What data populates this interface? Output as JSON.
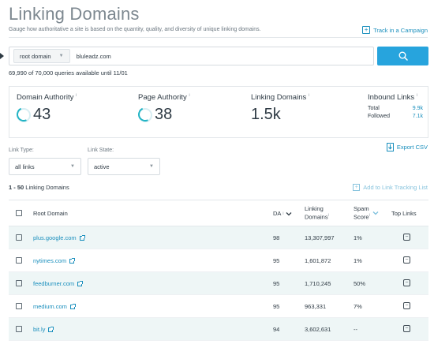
{
  "header": {
    "title": "Linking Domains",
    "subtitle": "Gauge how authoritative a site is based on the quantity, quality, and diversity of unique linking domains.",
    "track_label": "Track in a Campaign"
  },
  "search": {
    "scope_value": "root domain",
    "query": "bluleadz.com",
    "button_icon": "search-icon"
  },
  "quota_text": "69,990 of 70,000 queries available until 11/01",
  "metrics": {
    "da_label": "Domain Authority",
    "da_value": "43",
    "pa_label": "Page Authority",
    "pa_value": "38",
    "ld_label": "Linking Domains",
    "ld_value": "1.5k",
    "inbound_label": "Inbound Links",
    "total_label": "Total",
    "total_value": "9.9k",
    "followed_label": "Followed",
    "followed_value": "7.1k",
    "info_mark": "i"
  },
  "filters": {
    "link_type_label": "Link Type:",
    "link_type_value": "all links",
    "link_state_label": "Link State:",
    "link_state_value": "active"
  },
  "export_label": "Export CSV",
  "count_prefix": "1 - 50",
  "count_suffix": "Linking Domains",
  "add_tracking_label": "Add to Link Tracking List",
  "table": {
    "headers": {
      "root_domain": "Root Domain",
      "da": "DA",
      "linking_domains_1": "Linking",
      "linking_domains_2": "Domains",
      "spam_1": "Spam",
      "spam_2": "Score",
      "top_links": "Top Links"
    },
    "rows": [
      {
        "domain": "plus.google.com",
        "da": "98",
        "linking": "13,307,997",
        "spam": "1%"
      },
      {
        "domain": "nytimes.com",
        "da": "95",
        "linking": "1,601,872",
        "spam": "1%"
      },
      {
        "domain": "feedburner.com",
        "da": "95",
        "linking": "1,710,245",
        "spam": "50%"
      },
      {
        "domain": "medium.com",
        "da": "95",
        "linking": "963,331",
        "spam": "7%"
      },
      {
        "domain": "bit.ly",
        "da": "94",
        "linking": "3,602,631",
        "spam": "--"
      }
    ]
  },
  "colors": {
    "accent": "#27a4dd",
    "link": "#1a8fbd",
    "ring": "#20b3c4",
    "row_alt": "#eef6f6"
  }
}
